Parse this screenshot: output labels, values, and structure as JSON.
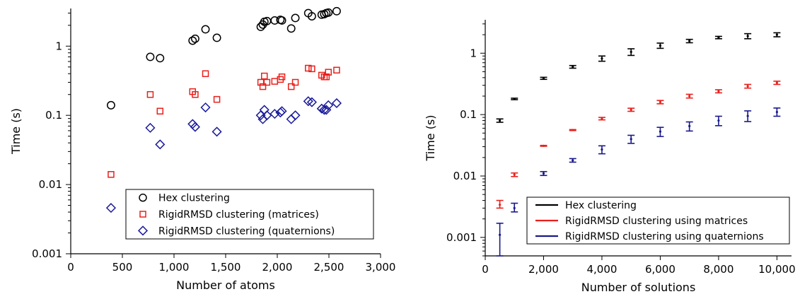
{
  "chart_data": [
    {
      "type": "scatter",
      "xlabel": "Number of atoms",
      "ylabel": "Time (s)",
      "xlim": [
        0,
        3000
      ],
      "ylim": [
        0.001,
        3.5
      ],
      "yscale": "log",
      "xticks": [
        0,
        500,
        1000,
        1500,
        2000,
        2500,
        3000
      ],
      "xtick_labels": [
        "0",
        "500",
        "1,000",
        "1,500",
        "2,000",
        "2,500",
        "3,000"
      ],
      "yticks": [
        0.001,
        0.01,
        0.1,
        1
      ],
      "ytick_labels": [
        "0.001",
        "0.01",
        "0.1",
        "1"
      ],
      "legend_position": "bottom-right",
      "series": [
        {
          "name": "Hex clustering",
          "marker": "circle",
          "color": "#000000",
          "x": [
            390,
            770,
            865,
            1180,
            1205,
            1305,
            1415,
            1840,
            1860,
            1875,
            1900,
            1975,
            2030,
            2045,
            2135,
            2175,
            2300,
            2335,
            2430,
            2455,
            2475,
            2495,
            2575
          ],
          "y": [
            0.14,
            0.7,
            0.67,
            1.2,
            1.28,
            1.75,
            1.32,
            1.9,
            2.05,
            2.25,
            2.3,
            2.35,
            2.4,
            2.35,
            1.8,
            2.55,
            3.0,
            2.7,
            2.85,
            2.9,
            3.0,
            3.05,
            3.2
          ]
        },
        {
          "name": "RigidRMSD clustering (matrices)",
          "marker": "square",
          "color": "#e8201c",
          "x": [
            390,
            770,
            865,
            1180,
            1205,
            1305,
            1415,
            1840,
            1860,
            1875,
            1900,
            1975,
            2030,
            2045,
            2135,
            2175,
            2300,
            2335,
            2430,
            2455,
            2475,
            2495,
            2575
          ],
          "y": [
            0.014,
            0.2,
            0.115,
            0.22,
            0.2,
            0.4,
            0.17,
            0.3,
            0.26,
            0.37,
            0.3,
            0.31,
            0.33,
            0.36,
            0.26,
            0.3,
            0.48,
            0.47,
            0.38,
            0.36,
            0.36,
            0.42,
            0.45
          ]
        },
        {
          "name": "RigidRMSD clustering (quaternions)",
          "marker": "diamond",
          "color": "#1a1a9c",
          "x": [
            390,
            770,
            865,
            1180,
            1205,
            1305,
            1415,
            1840,
            1860,
            1875,
            1900,
            1975,
            2030,
            2045,
            2135,
            2175,
            2300,
            2335,
            2430,
            2455,
            2475,
            2495,
            2575
          ],
          "y": [
            0.0046,
            0.066,
            0.038,
            0.075,
            0.068,
            0.13,
            0.058,
            0.1,
            0.088,
            0.12,
            0.1,
            0.105,
            0.11,
            0.115,
            0.088,
            0.1,
            0.16,
            0.155,
            0.125,
            0.12,
            0.12,
            0.14,
            0.15
          ]
        }
      ]
    },
    {
      "type": "scatter",
      "errorbars": true,
      "xlabel": "Number of solutions",
      "ylabel": "Time (s)",
      "xlim": [
        0,
        10500
      ],
      "ylim": [
        0.0005,
        3.5
      ],
      "yscale": "log",
      "xticks": [
        0,
        2000,
        4000,
        6000,
        8000,
        10000
      ],
      "xtick_labels": [
        "0",
        "2,000",
        "4,000",
        "6,000",
        "8,000",
        "10,000"
      ],
      "yticks": [
        0.001,
        0.01,
        0.1,
        1
      ],
      "ytick_labels": [
        "0.001",
        "0.01",
        "0.1",
        "1"
      ],
      "legend_position": "bottom-right",
      "series": [
        {
          "name": "Hex clustering",
          "color": "#000000",
          "x": [
            500,
            1000,
            2000,
            3000,
            4000,
            5000,
            6000,
            7000,
            8000,
            9000,
            10000
          ],
          "y": [
            0.08,
            0.18,
            0.39,
            0.6,
            0.82,
            1.05,
            1.33,
            1.58,
            1.8,
            1.9,
            2.0
          ],
          "err_low": [
            0.075,
            0.175,
            0.375,
            0.57,
            0.74,
            0.92,
            1.2,
            1.48,
            1.72,
            1.72,
            1.85
          ],
          "err_high": [
            0.085,
            0.185,
            0.405,
            0.63,
            0.9,
            1.18,
            1.46,
            1.68,
            1.88,
            2.08,
            2.15
          ]
        },
        {
          "name": "RigidRMSD clustering using matrices",
          "color": "#e8201c",
          "x": [
            500,
            1000,
            2000,
            3000,
            4000,
            5000,
            6000,
            7000,
            8000,
            9000,
            10000
          ],
          "y": [
            0.0034,
            0.0105,
            0.031,
            0.056,
            0.086,
            0.12,
            0.16,
            0.2,
            0.24,
            0.29,
            0.33
          ],
          "err_low": [
            0.003,
            0.0098,
            0.0305,
            0.055,
            0.082,
            0.113,
            0.15,
            0.186,
            0.226,
            0.27,
            0.31
          ],
          "err_high": [
            0.004,
            0.0112,
            0.0315,
            0.057,
            0.09,
            0.127,
            0.17,
            0.214,
            0.254,
            0.31,
            0.35
          ]
        },
        {
          "name": "RigidRMSD clustering using quaternions",
          "color": "#1a1a8c",
          "x": [
            500,
            1000,
            2000,
            3000,
            4000,
            5000,
            6000,
            7000,
            8000,
            9000,
            10000
          ],
          "y": [
            0.0011,
            0.003,
            0.011,
            0.018,
            0.027,
            0.04,
            0.053,
            0.065,
            0.08,
            0.095,
            0.11
          ],
          "err_low": [
            0.0005,
            0.0026,
            0.0102,
            0.0168,
            0.023,
            0.034,
            0.044,
            0.054,
            0.066,
            0.077,
            0.094
          ],
          "err_high": [
            0.0017,
            0.0036,
            0.0118,
            0.0192,
            0.031,
            0.046,
            0.062,
            0.076,
            0.094,
            0.115,
            0.128
          ]
        }
      ]
    }
  ]
}
